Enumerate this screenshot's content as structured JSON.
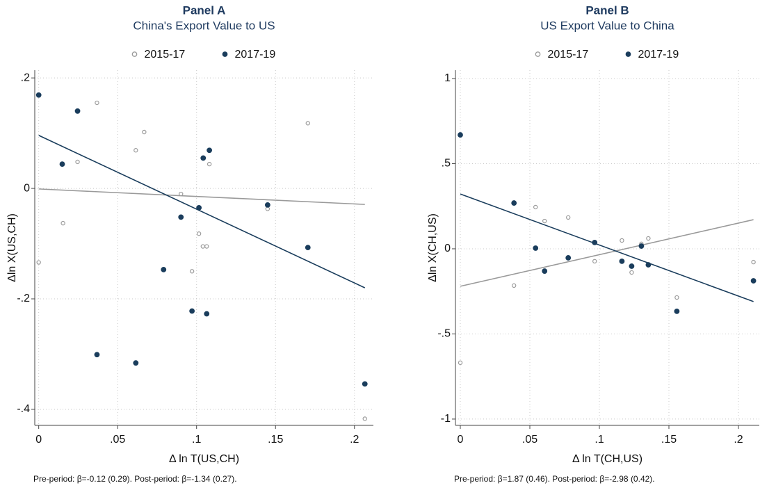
{
  "chart_data": [
    {
      "type": "scatter",
      "title": "Panel A",
      "subtitle": "China's Export Value to US",
      "xlabel": "Δ ln T(US,CH)",
      "ylabel": "Δln X(US,CH)",
      "note": "Pre-period: β=-0.12 (0.29). Post-period: β=-1.34 (0.27).",
      "xlim": [
        -0.0025,
        0.212
      ],
      "ylim": [
        -0.429,
        0.214
      ],
      "xticks": [
        0,
        {
          "value": 0.05,
          "label": ".05"
        },
        {
          "value": 0.1,
          "label": ".1"
        },
        {
          "value": 0.15,
          "label": ".15"
        },
        {
          "value": 0.2,
          "label": ".2"
        }
      ],
      "yticks": [
        {
          "value": 0.2,
          "label": ".2"
        },
        0,
        {
          "value": -0.2,
          "label": "-.2"
        },
        {
          "value": -0.4,
          "label": "-.4"
        }
      ],
      "grid": true,
      "series": [
        {
          "name": "2015-17",
          "color": "#9a9a9a",
          "marker": "hollow",
          "x": [
            0,
            0.0154,
            0.0246,
            0.0369,
            0.0615,
            0.0668,
            0.0901,
            0.1015,
            0.104,
            0.1064,
            0.0971,
            0.1081,
            0.145,
            0.1705,
            0.2066
          ],
          "values": [
            -0.134,
            -0.063,
            0.048,
            0.155,
            0.069,
            0.102,
            -0.01,
            -0.082,
            -0.105,
            -0.105,
            -0.15,
            0.044,
            -0.037,
            0.118,
            -0.417
          ],
          "fit": {
            "x": [
              0,
              0.2066
            ],
            "y": [
              -0.001,
              -0.029
            ]
          }
        },
        {
          "name": "2017-19",
          "color": "#1a3d5c",
          "marker": "filled",
          "x": [
            0,
            0.0149,
            0.0246,
            0.0369,
            0.0615,
            0.0791,
            0.0901,
            0.0971,
            0.1015,
            0.1042,
            0.1064,
            0.1081,
            0.145,
            0.1705,
            0.2066
          ],
          "values": [
            0.169,
            0.044,
            0.14,
            -0.301,
            -0.316,
            -0.147,
            -0.052,
            -0.222,
            -0.035,
            0.055,
            -0.227,
            0.069,
            -0.03,
            -0.107,
            -0.354
          ],
          "fit": {
            "x": [
              0,
              0.2066
            ],
            "y": [
              0.096,
              -0.18
            ]
          }
        }
      ]
    },
    {
      "type": "scatter",
      "title": "Panel B",
      "subtitle": "US Export Value to China",
      "xlabel": "Δ ln T(CH,US)",
      "ylabel": "Δln X(CH,US)",
      "note": "Pre-period: β=1.87 (0.46). Post-period: β=-2.98 (0.42).",
      "xlim": [
        -0.0035,
        0.215
      ],
      "ylim": [
        -1.037,
        1.049
      ],
      "xticks": [
        0,
        {
          "value": 0.05,
          "label": ".05"
        },
        {
          "value": 0.1,
          "label": ".1"
        },
        {
          "value": 0.15,
          "label": ".15"
        },
        {
          "value": 0.2,
          "label": ".2"
        }
      ],
      "yticks": [
        1,
        {
          "value": 0.5,
          "label": ".5"
        },
        0,
        {
          "value": -0.5,
          "label": "-.5"
        },
        -1
      ],
      "grid": true,
      "series": [
        {
          "name": "2015-17",
          "color": "#9a9a9a",
          "marker": "hollow",
          "x": [
            0,
            0.0386,
            0.0541,
            0.0606,
            0.0776,
            0.0966,
            0.1162,
            0.1232,
            0.1302,
            0.1352,
            0.1557,
            0.2108
          ],
          "values": [
            -0.669,
            -0.216,
            0.245,
            0.163,
            0.184,
            -0.073,
            0.049,
            -0.139,
            0.029,
            0.061,
            -0.286,
            -0.078
          ],
          "fit": {
            "x": [
              0,
              0.2108
            ],
            "y": [
              -0.22,
              0.171
            ]
          }
        },
        {
          "name": "2017-19",
          "color": "#1a3d5c",
          "marker": "filled",
          "x": [
            0,
            0.0386,
            0.0541,
            0.0606,
            0.0776,
            0.0966,
            0.1162,
            0.1232,
            0.1302,
            0.1352,
            0.1557,
            0.2108
          ],
          "values": [
            0.669,
            0.269,
            0.004,
            -0.131,
            -0.053,
            0.037,
            -0.073,
            -0.102,
            0.016,
            -0.094,
            -0.367,
            -0.188
          ],
          "fit": {
            "x": [
              0,
              0.2108
            ],
            "y": [
              0.322,
              -0.31
            ]
          }
        }
      ]
    }
  ]
}
